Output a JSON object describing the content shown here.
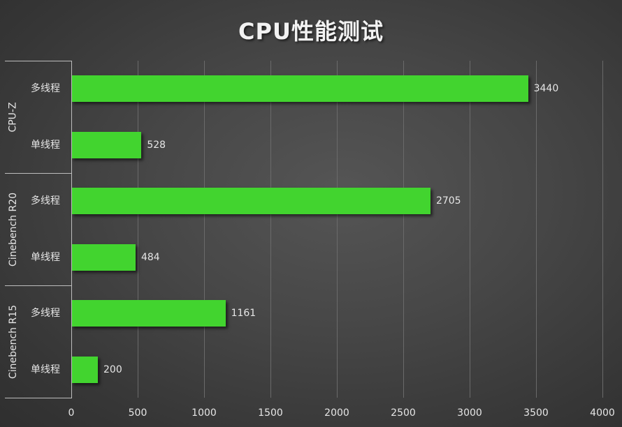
{
  "chart_data": {
    "type": "bar",
    "orientation": "horizontal",
    "title": "CPU性能测试",
    "xlabel": "",
    "ylabel": "",
    "xlim": [
      0,
      4000
    ],
    "x_ticks": [
      "0",
      "500",
      "1000",
      "1500",
      "2000",
      "2500",
      "3000",
      "3500",
      "4000"
    ],
    "grid": true,
    "legend": null,
    "bar_color": "#42d42f",
    "groups": [
      {
        "name": "CPU-Z",
        "items": [
          {
            "label": "多线程",
            "value": 3440
          },
          {
            "label": "单线程",
            "value": 528
          }
        ]
      },
      {
        "name": "Cinebench R20",
        "items": [
          {
            "label": "多线程",
            "value": 2705
          },
          {
            "label": "单线程",
            "value": 484
          }
        ]
      },
      {
        "name": "Cinebench R15",
        "items": [
          {
            "label": "多线程",
            "value": 1161
          },
          {
            "label": "单线程",
            "value": 200
          }
        ]
      }
    ],
    "categories": [
      "CPU-Z 多线程",
      "CPU-Z 单线程",
      "Cinebench R20 多线程",
      "Cinebench R20 单线程",
      "Cinebench R15 多线程",
      "Cinebench R15 单线程"
    ],
    "values": [
      3440,
      528,
      2705,
      484,
      1161,
      200
    ]
  }
}
